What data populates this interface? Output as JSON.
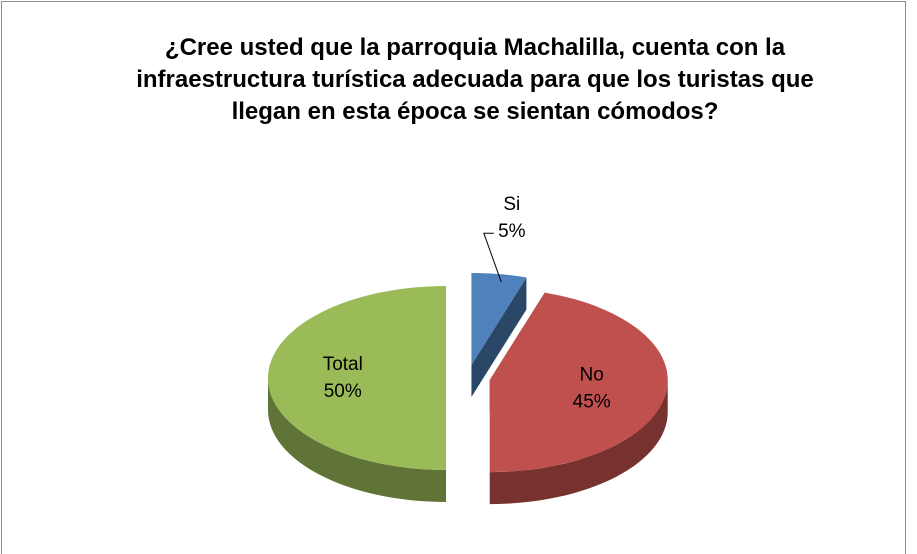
{
  "chart_data": {
    "type": "pie",
    "title": "¿Cree usted que la parroquia Machalilla, cuenta con la infraestructura turística adecuada para que los turistas que llegan en esta época se sientan cómodos?",
    "categories": [
      "Si",
      "No",
      "Total"
    ],
    "values": [
      5,
      45,
      50
    ],
    "value_labels": [
      "5%",
      "45%",
      "50%"
    ],
    "colors": [
      "#4f81bd",
      "#c0504d",
      "#9bbb59"
    ]
  }
}
